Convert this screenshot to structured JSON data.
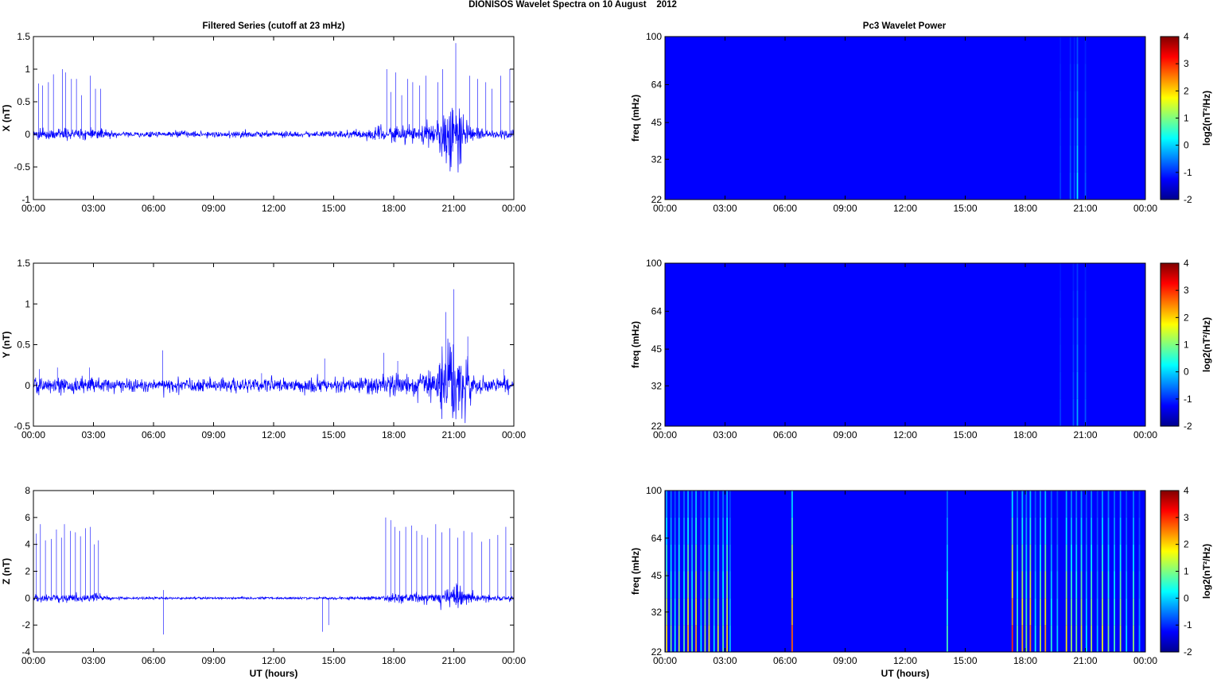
{
  "figure": {
    "title": "DIONISOS Wavelet Spectra on 10 August    2012",
    "left_title": "Filtered Series (cutoff at 23 mHz)",
    "right_title": "Pc3 Wavelet Power",
    "xlabel": "UT (hours)",
    "freq_label": "freq (mHz)",
    "colorbar_label": "log2(nT²/Hz)"
  },
  "chart_data": [
    {
      "type": "line",
      "title": "Filtered Series (cutoff at 23 mHz)",
      "ylabel": "X (nT)",
      "xlabel": "",
      "x_unit": "hours UT",
      "xlim": [
        0,
        24
      ],
      "ylim": [
        -1,
        1.5
      ],
      "x_ticks": [
        "00:00",
        "03:00",
        "06:00",
        "09:00",
        "12:00",
        "15:00",
        "18:00",
        "21:00",
        "00:00"
      ],
      "y_ticks": [
        "-1",
        "-0.5",
        "0",
        "0.5",
        "1",
        "1.5"
      ],
      "color": "#0000ff",
      "envelope": {
        "hours": [
          0,
          1,
          2,
          3,
          3.5,
          4,
          6,
          8,
          10,
          12,
          14,
          16,
          17,
          18,
          19,
          20,
          20.5,
          21,
          21.5,
          22,
          23,
          24
        ],
        "amp": [
          0.06,
          0.07,
          0.07,
          0.1,
          0.08,
          0.04,
          0.04,
          0.05,
          0.04,
          0.04,
          0.04,
          0.06,
          0.09,
          0.12,
          0.1,
          0.16,
          0.35,
          0.55,
          0.25,
          0.1,
          0.06,
          0.06
        ]
      },
      "spikes": [
        {
          "x": 0.25,
          "y": 0.78
        },
        {
          "x": 0.45,
          "y": 0.75
        },
        {
          "x": 0.75,
          "y": 0.8
        },
        {
          "x": 1.0,
          "y": 0.92
        },
        {
          "x": 1.45,
          "y": 1.0
        },
        {
          "x": 1.6,
          "y": 0.95
        },
        {
          "x": 1.9,
          "y": 0.85
        },
        {
          "x": 2.15,
          "y": 0.85
        },
        {
          "x": 2.4,
          "y": 0.6
        },
        {
          "x": 2.85,
          "y": 0.9
        },
        {
          "x": 3.1,
          "y": 0.7
        },
        {
          "x": 3.35,
          "y": 0.7
        },
        {
          "x": 17.65,
          "y": 1.0
        },
        {
          "x": 17.85,
          "y": 0.65
        },
        {
          "x": 18.1,
          "y": 0.95
        },
        {
          "x": 18.4,
          "y": 0.6
        },
        {
          "x": 18.7,
          "y": 0.85
        },
        {
          "x": 18.95,
          "y": 0.8
        },
        {
          "x": 19.3,
          "y": 0.75
        },
        {
          "x": 19.6,
          "y": 0.9
        },
        {
          "x": 20.2,
          "y": 0.8
        },
        {
          "x": 20.45,
          "y": 1.0
        },
        {
          "x": 21.1,
          "y": 1.4
        },
        {
          "x": 21.8,
          "y": 0.9
        },
        {
          "x": 22.2,
          "y": 0.85
        },
        {
          "x": 22.6,
          "y": 0.8
        },
        {
          "x": 22.9,
          "y": 0.7
        },
        {
          "x": 23.35,
          "y": 0.9
        },
        {
          "x": 23.8,
          "y": 1.0
        }
      ]
    },
    {
      "type": "line",
      "title": "",
      "ylabel": "Y (nT)",
      "xlabel": "",
      "x_unit": "hours UT",
      "xlim": [
        0,
        24
      ],
      "ylim": [
        -0.5,
        1.5
      ],
      "x_ticks": [
        "00:00",
        "03:00",
        "06:00",
        "09:00",
        "12:00",
        "15:00",
        "18:00",
        "21:00",
        "00:00"
      ],
      "y_ticks": [
        "-0.5",
        "0",
        "0.5",
        "1",
        "1.5"
      ],
      "color": "#0000ff",
      "envelope": {
        "hours": [
          0,
          1,
          2,
          3,
          4,
          6,
          8,
          10,
          12,
          14,
          16,
          17,
          18,
          19,
          20,
          20.5,
          21,
          21.5,
          22,
          23,
          24
        ],
        "amp": [
          0.08,
          0.09,
          0.09,
          0.09,
          0.08,
          0.07,
          0.08,
          0.08,
          0.07,
          0.08,
          0.08,
          0.1,
          0.14,
          0.12,
          0.2,
          0.45,
          0.6,
          0.35,
          0.12,
          0.08,
          0.08
        ]
      },
      "spikes": [
        {
          "x": 0.3,
          "y": 0.2
        },
        {
          "x": 1.2,
          "y": 0.22
        },
        {
          "x": 2.8,
          "y": 0.22
        },
        {
          "x": 6.45,
          "y": 0.43
        },
        {
          "x": 11.4,
          "y": 0.15
        },
        {
          "x": 14.55,
          "y": 0.33
        },
        {
          "x": 17.5,
          "y": 0.4
        },
        {
          "x": 18.2,
          "y": 0.3
        },
        {
          "x": 20.6,
          "y": 0.9
        },
        {
          "x": 21.0,
          "y": 1.18
        },
        {
          "x": 21.7,
          "y": 0.6
        },
        {
          "x": 23.5,
          "y": 0.2
        }
      ]
    },
    {
      "type": "line",
      "title": "",
      "ylabel": "Z (nT)",
      "xlabel": "UT (hours)",
      "x_unit": "hours UT",
      "xlim": [
        0,
        24
      ],
      "ylim": [
        -4,
        8
      ],
      "x_ticks": [
        "00:00",
        "03:00",
        "06:00",
        "09:00",
        "12:00",
        "15:00",
        "18:00",
        "21:00",
        "00:00"
      ],
      "y_ticks": [
        "-4",
        "-2",
        "0",
        "2",
        "4",
        "6",
        "8"
      ],
      "color": "#0000ff",
      "envelope": {
        "hours": [
          0,
          1,
          2,
          3,
          3.4,
          4,
          6,
          8,
          10,
          12,
          14,
          16,
          17,
          18,
          19,
          20,
          20.5,
          21,
          21.5,
          22,
          23,
          24
        ],
        "amp": [
          0.25,
          0.25,
          0.25,
          0.3,
          0.2,
          0.1,
          0.08,
          0.08,
          0.08,
          0.08,
          0.08,
          0.1,
          0.15,
          0.3,
          0.35,
          0.4,
          0.55,
          0.8,
          0.5,
          0.3,
          0.2,
          0.2
        ]
      },
      "spikes": [
        {
          "x": 0.15,
          "y": 4.8
        },
        {
          "x": 0.35,
          "y": 5.5
        },
        {
          "x": 0.6,
          "y": 4.3
        },
        {
          "x": 0.9,
          "y": 4.4
        },
        {
          "x": 1.15,
          "y": 5.1
        },
        {
          "x": 1.4,
          "y": 4.5
        },
        {
          "x": 1.55,
          "y": 5.5
        },
        {
          "x": 1.85,
          "y": 5.0
        },
        {
          "x": 2.1,
          "y": 4.9
        },
        {
          "x": 2.35,
          "y": 4.6
        },
        {
          "x": 2.6,
          "y": 5.2
        },
        {
          "x": 2.85,
          "y": 5.3
        },
        {
          "x": 3.05,
          "y": 4.0
        },
        {
          "x": 3.25,
          "y": 4.3
        },
        {
          "x": 6.5,
          "y": 0.6
        },
        {
          "x": 6.5,
          "y": -2.7
        },
        {
          "x": 14.45,
          "y": -2.5
        },
        {
          "x": 14.75,
          "y": -2.0
        },
        {
          "x": 17.6,
          "y": 6.0
        },
        {
          "x": 17.85,
          "y": 5.8
        },
        {
          "x": 18.05,
          "y": 5.3
        },
        {
          "x": 18.3,
          "y": 5.0
        },
        {
          "x": 18.6,
          "y": 5.3
        },
        {
          "x": 18.9,
          "y": 5.4
        },
        {
          "x": 19.15,
          "y": 5.0
        },
        {
          "x": 19.4,
          "y": 4.7
        },
        {
          "x": 19.7,
          "y": 4.5
        },
        {
          "x": 20.1,
          "y": 5.5
        },
        {
          "x": 20.4,
          "y": 4.9
        },
        {
          "x": 20.8,
          "y": 5.2
        },
        {
          "x": 21.2,
          "y": 4.5
        },
        {
          "x": 21.5,
          "y": 5.0
        },
        {
          "x": 21.9,
          "y": 4.9
        },
        {
          "x": 22.4,
          "y": 4.2
        },
        {
          "x": 22.8,
          "y": 4.4
        },
        {
          "x": 23.2,
          "y": 4.7
        },
        {
          "x": 23.6,
          "y": 5.3
        },
        {
          "x": 23.85,
          "y": 3.8
        }
      ]
    },
    {
      "type": "heatmap",
      "title": "Pc3 Wavelet Power",
      "ylabel": "freq (mHz)",
      "xlabel": "",
      "xlim": [
        0,
        24
      ],
      "ylim": [
        22,
        100
      ],
      "yscale": "log",
      "x_ticks": [
        "00:00",
        "03:00",
        "06:00",
        "09:00",
        "12:00",
        "15:00",
        "18:00",
        "21:00",
        "00:00"
      ],
      "y_ticks": [
        "22",
        "32",
        "45",
        "64",
        "100"
      ],
      "colorbar": {
        "label": "log2(nT²/Hz)",
        "min": -2,
        "max": 4,
        "ticks": [
          "-2",
          "-1",
          "0",
          "1",
          "2",
          "3",
          "4"
        ],
        "colormap": "jet"
      },
      "background": -2,
      "streaks": [
        {
          "hour": 20.25,
          "level": -1.3
        },
        {
          "hour": 20.45,
          "level": -1.4
        },
        {
          "hour": 20.6,
          "level": -0.3
        },
        {
          "hour": 21.0,
          "level": -1.4
        },
        {
          "hour": 19.75,
          "level": -1.6
        }
      ]
    },
    {
      "type": "heatmap",
      "title": "",
      "ylabel": "freq (mHz)",
      "xlabel": "",
      "xlim": [
        0,
        24
      ],
      "ylim": [
        22,
        100
      ],
      "yscale": "log",
      "x_ticks": [
        "00:00",
        "03:00",
        "06:00",
        "09:00",
        "12:00",
        "15:00",
        "18:00",
        "21:00",
        "00:00"
      ],
      "y_ticks": [
        "22",
        "32",
        "45",
        "64",
        "100"
      ],
      "colorbar": {
        "label": "log2(nT²/Hz)",
        "min": -2,
        "max": 4,
        "ticks": [
          "-2",
          "-1",
          "0",
          "1",
          "2",
          "3",
          "4"
        ],
        "colormap": "jet"
      },
      "background": -2,
      "streaks": [
        {
          "hour": 20.4,
          "level": -1.4
        },
        {
          "hour": 20.6,
          "level": -0.8
        },
        {
          "hour": 21.0,
          "level": -1.4
        },
        {
          "hour": 19.75,
          "level": -1.6
        }
      ]
    },
    {
      "type": "heatmap",
      "title": "",
      "ylabel": "freq (mHz)",
      "xlabel": "UT (hours)",
      "xlim": [
        0,
        24
      ],
      "ylim": [
        22,
        100
      ],
      "yscale": "log",
      "x_ticks": [
        "00:00",
        "03:00",
        "06:00",
        "09:00",
        "12:00",
        "15:00",
        "18:00",
        "21:00",
        "00:00"
      ],
      "y_ticks": [
        "22",
        "32",
        "45",
        "64",
        "100"
      ],
      "colorbar": {
        "label": "log2(nT²/Hz)",
        "min": -2,
        "max": 4,
        "ticks": [
          "-2",
          "-1",
          "0",
          "1",
          "2",
          "3",
          "4"
        ],
        "colormap": "jet"
      },
      "background": -2,
      "streaks": [
        {
          "hour": 0.08,
          "level": 1.5
        },
        {
          "hour": 0.3,
          "level": 0.5
        },
        {
          "hour": 0.5,
          "level": -0.2
        },
        {
          "hour": 0.7,
          "level": 1.0
        },
        {
          "hour": 0.95,
          "level": 0.3
        },
        {
          "hour": 1.15,
          "level": 1.8
        },
        {
          "hour": 1.35,
          "level": 0.2
        },
        {
          "hour": 1.55,
          "level": 2.0
        },
        {
          "hour": 1.8,
          "level": -0.3
        },
        {
          "hour": 2.0,
          "level": 0.8
        },
        {
          "hour": 2.2,
          "level": 1.4
        },
        {
          "hour": 2.45,
          "level": -0.4
        },
        {
          "hour": 2.65,
          "level": 1.1
        },
        {
          "hour": 2.9,
          "level": 0.4
        },
        {
          "hour": 3.1,
          "level": 1.6
        },
        {
          "hour": 3.25,
          "level": -0.6
        },
        {
          "hour": 6.35,
          "level": 2.5
        },
        {
          "hour": 14.1,
          "level": 0.2
        },
        {
          "hour": 17.35,
          "level": 2.8
        },
        {
          "hour": 17.6,
          "level": 0.3
        },
        {
          "hour": 17.85,
          "level": 1.9
        },
        {
          "hour": 18.05,
          "level": 0.5
        },
        {
          "hour": 18.25,
          "level": 2.2
        },
        {
          "hour": 18.5,
          "level": -0.2
        },
        {
          "hour": 18.75,
          "level": 1.0
        },
        {
          "hour": 19.0,
          "level": 2.0
        },
        {
          "hour": 19.3,
          "level": 0.0
        },
        {
          "hour": 19.6,
          "level": -0.5
        },
        {
          "hour": 20.05,
          "level": 1.5
        },
        {
          "hour": 20.3,
          "level": 0.8
        },
        {
          "hour": 20.55,
          "level": 0.5
        },
        {
          "hour": 20.8,
          "level": 1.2
        },
        {
          "hour": 21.05,
          "level": -0.3
        },
        {
          "hour": 21.3,
          "level": 0.9
        },
        {
          "hour": 21.6,
          "level": -0.6
        },
        {
          "hour": 21.85,
          "level": 1.3
        },
        {
          "hour": 22.15,
          "level": 0.6
        },
        {
          "hour": 22.45,
          "level": 0.2
        },
        {
          "hour": 22.75,
          "level": 1.0
        },
        {
          "hour": 23.05,
          "level": -0.4
        },
        {
          "hour": 23.4,
          "level": 0.7
        },
        {
          "hour": 23.7,
          "level": -0.8
        }
      ]
    }
  ]
}
